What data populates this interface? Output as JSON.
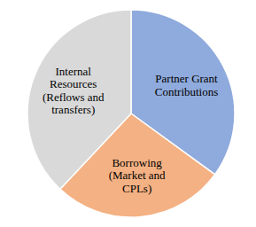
{
  "chart_data": {
    "type": "pie",
    "categories": [
      "Partner Grant Contributions",
      "Borrowing (Market and CPLs)",
      "Internal Resources (Reflows and transfers)"
    ],
    "values": [
      35,
      27,
      38
    ],
    "colors": [
      "#8faadc",
      "#f4b183",
      "#d9d9d9"
    ]
  }
}
